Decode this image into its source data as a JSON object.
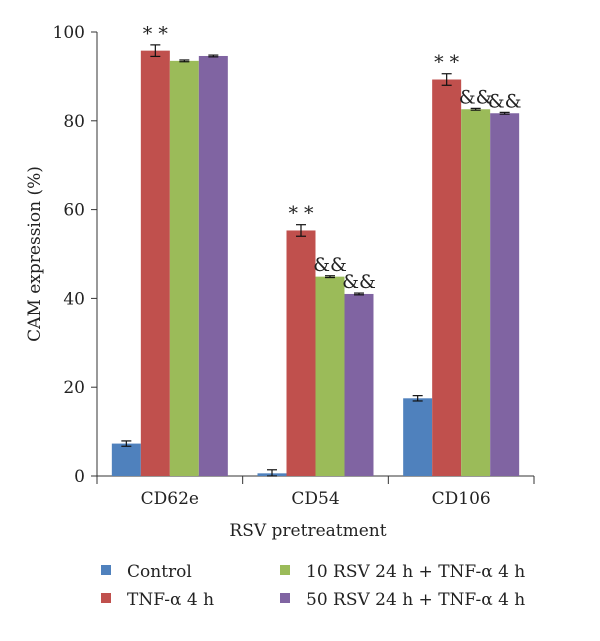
{
  "chart_data": {
    "type": "bar",
    "categories": [
      "CD62e",
      "CD54",
      "CD106"
    ],
    "xlabel": "RSV pretreatment",
    "ylabel": "CAM expression (%)",
    "ylim": [
      0,
      100
    ],
    "yticks": [
      0,
      20,
      40,
      60,
      80,
      100
    ],
    "grid": false,
    "legend_position": "bottom",
    "series": [
      {
        "name": "Control",
        "color": "#4f81bd",
        "values": [
          7.3,
          0.6,
          17.5
        ],
        "errors": [
          0.6,
          0.8,
          0.6
        ],
        "annotations": [
          "",
          "",
          ""
        ]
      },
      {
        "name": "TNF-α 4 h",
        "color": "#c0504d",
        "values": [
          95.8,
          55.3,
          89.3
        ],
        "errors": [
          1.3,
          1.3,
          1.3
        ],
        "annotations": [
          "* *",
          "* *",
          "* *"
        ]
      },
      {
        "name": "10 RSV 24 h + TNF-α 4 h",
        "color": "#9bbb59",
        "values": [
          93.5,
          44.9,
          82.6
        ],
        "errors": [
          0.2,
          0.2,
          0.2
        ],
        "annotations": [
          "",
          "&&",
          "&&"
        ]
      },
      {
        "name": "50 RSV 24 h + TNF-α 4 h",
        "color": "#8064a2",
        "values": [
          94.6,
          41.0,
          81.7
        ],
        "errors": [
          0.2,
          0.2,
          0.2
        ],
        "annotations": [
          "",
          "&&",
          "&&"
        ]
      }
    ]
  }
}
